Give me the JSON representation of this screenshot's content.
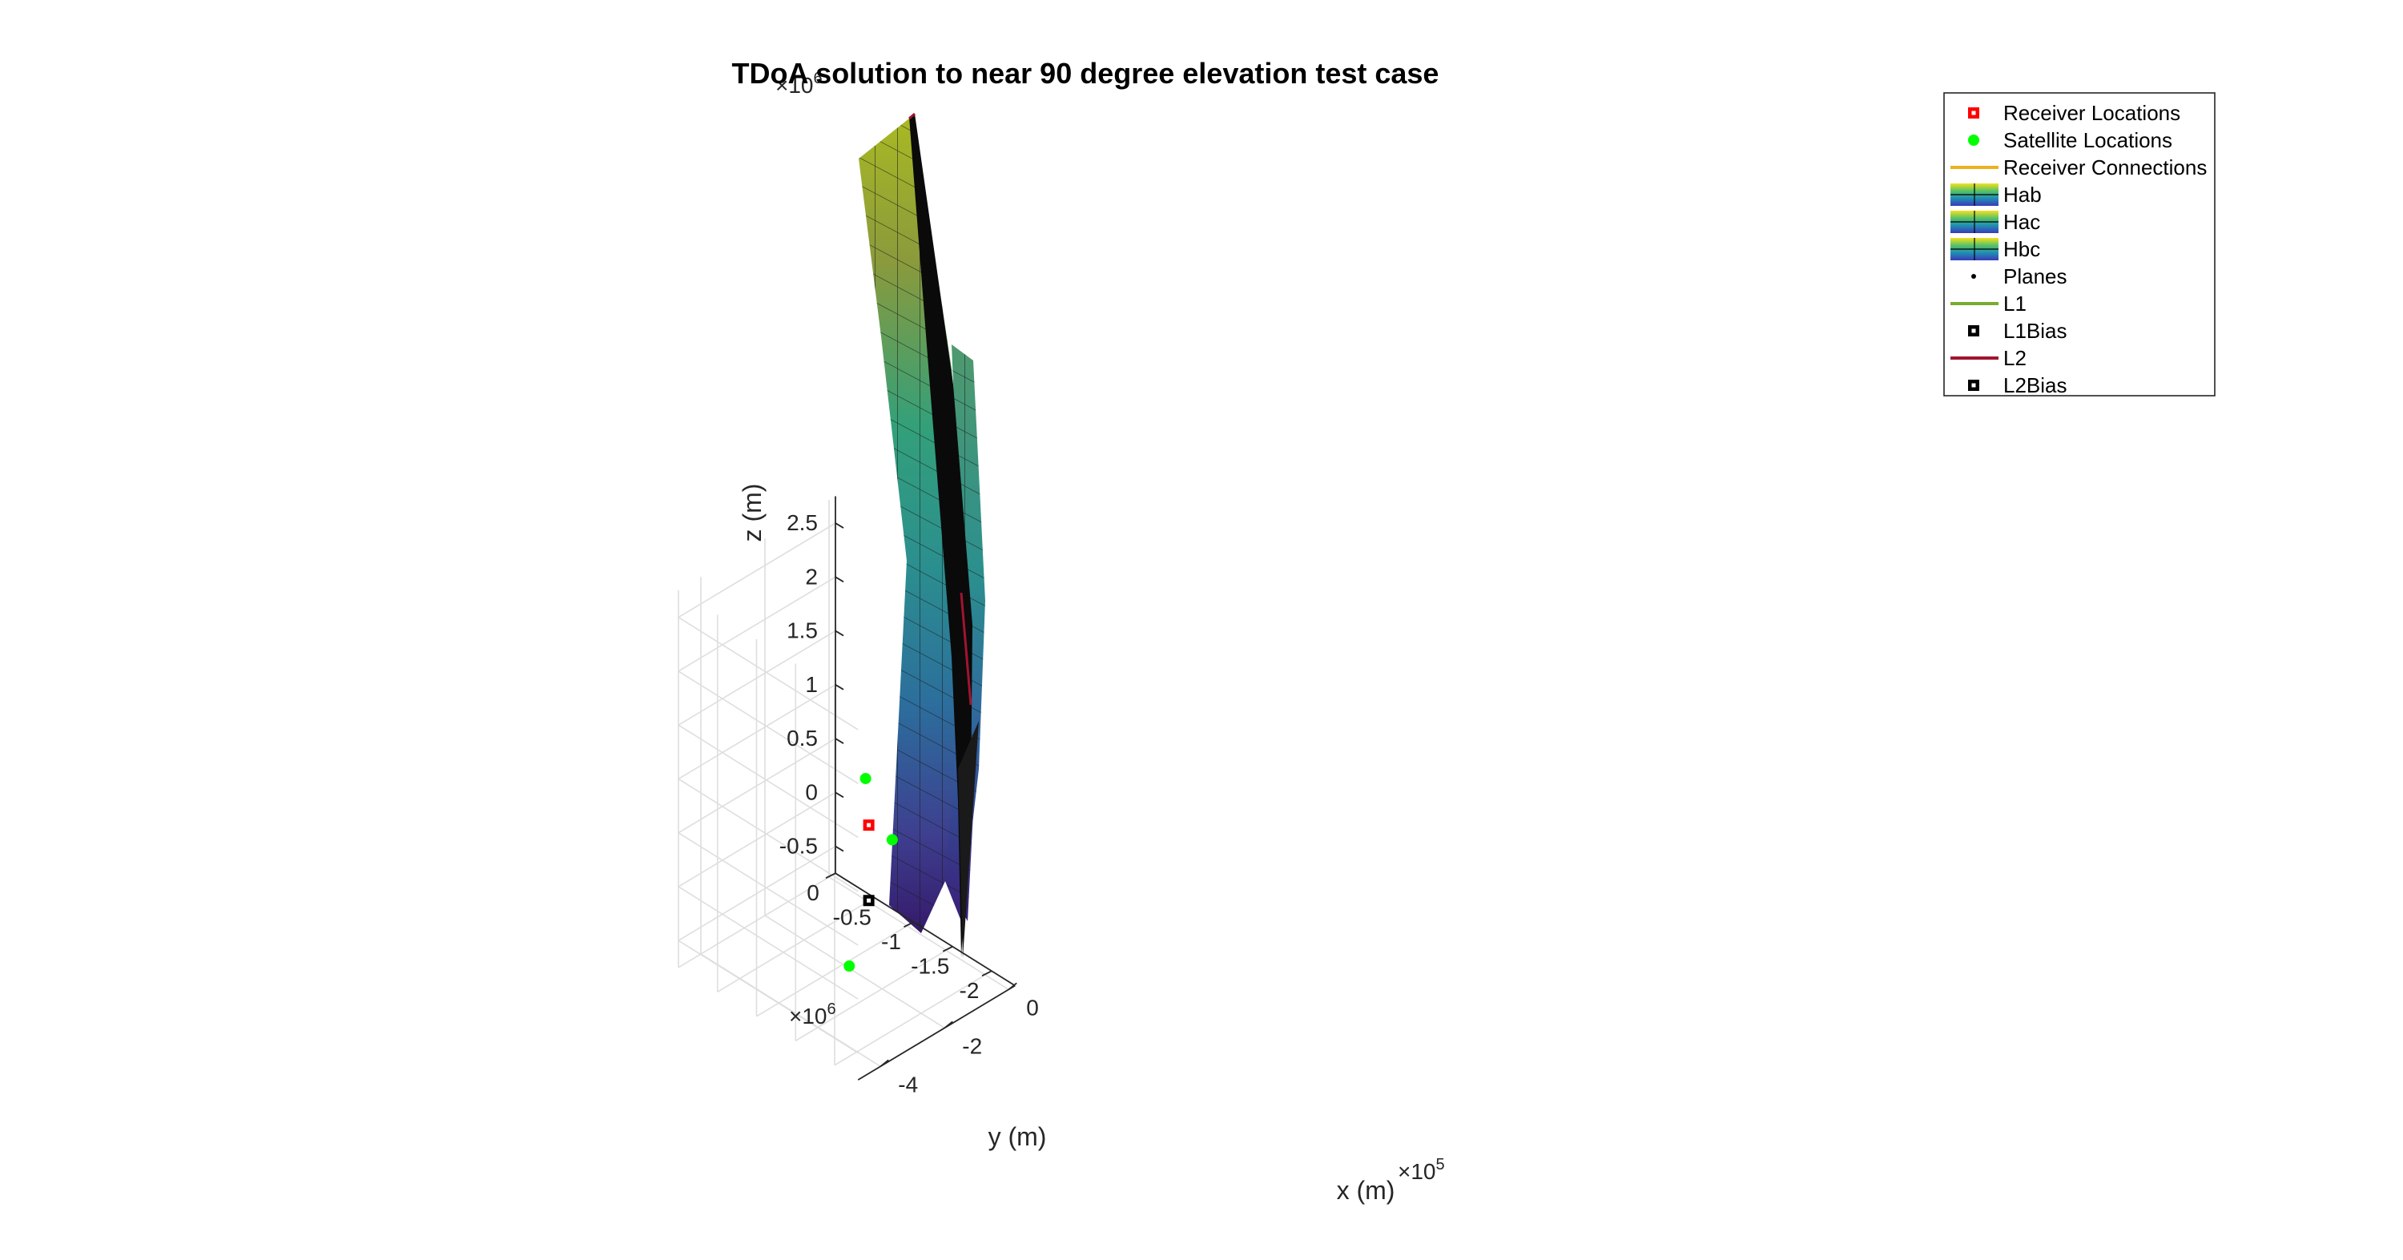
{
  "chart_data": {
    "type": "scatter",
    "title": "TDoA solution to near 90 degree elevation test case",
    "xlabel": "x (m)",
    "ylabel": "y (m)",
    "zlabel": "z (m)",
    "x_exponent": "×10",
    "x_exponent_power": "5",
    "y_exponent": "×10",
    "y_exponent_power": "6",
    "z_exponent": "×10",
    "z_exponent_power": "6",
    "x_ticks": [
      "-4",
      "-2",
      "0"
    ],
    "y_ticks": [
      "0",
      "-0.5",
      "-1",
      "-1.5",
      "-2"
    ],
    "z_ticks": [
      "-0.5",
      "0",
      "0.5",
      "1",
      "1.5",
      "2",
      "2.5"
    ],
    "grid": true,
    "legend_position": "top-right",
    "colors": {
      "receiver": "#ff0000",
      "satellite": "#00ff00",
      "connections": "#edb120",
      "l1": "#77ac30",
      "l2": "#a2142f",
      "bias": "#000000"
    },
    "legend": [
      {
        "label": "Receiver Locations",
        "marker": "square-red"
      },
      {
        "label": "Satellite Locations",
        "marker": "dot-green"
      },
      {
        "label": "Receiver Connections",
        "marker": "line-orange"
      },
      {
        "label": "Hab",
        "marker": "surface"
      },
      {
        "label": "Hac",
        "marker": "surface"
      },
      {
        "label": "Hbc",
        "marker": "surface"
      },
      {
        "label": "Planes",
        "marker": "dot-black"
      },
      {
        "label": "L1",
        "marker": "line-green"
      },
      {
        "label": "L1Bias",
        "marker": "square-black"
      },
      {
        "label": "L2",
        "marker": "line-red"
      },
      {
        "label": "L2Bias",
        "marker": "square-black"
      }
    ],
    "series": [
      {
        "name": "Receiver Locations",
        "points": [
          {
            "x": -0.1,
            "y": -0.55,
            "z": 0.0
          }
        ]
      },
      {
        "name": "Satellite Locations",
        "points": [
          {
            "x": -0.2,
            "y": -0.55,
            "z": 0.45
          },
          {
            "x": -0.1,
            "y": -0.85,
            "z": 0.0
          },
          {
            "x": -4.0,
            "y": -1.9,
            "z": 0.0
          }
        ]
      },
      {
        "name": "L2Bias",
        "points": [
          {
            "x": -0.1,
            "y": -0.55,
            "z": -0.7
          }
        ]
      }
    ]
  }
}
